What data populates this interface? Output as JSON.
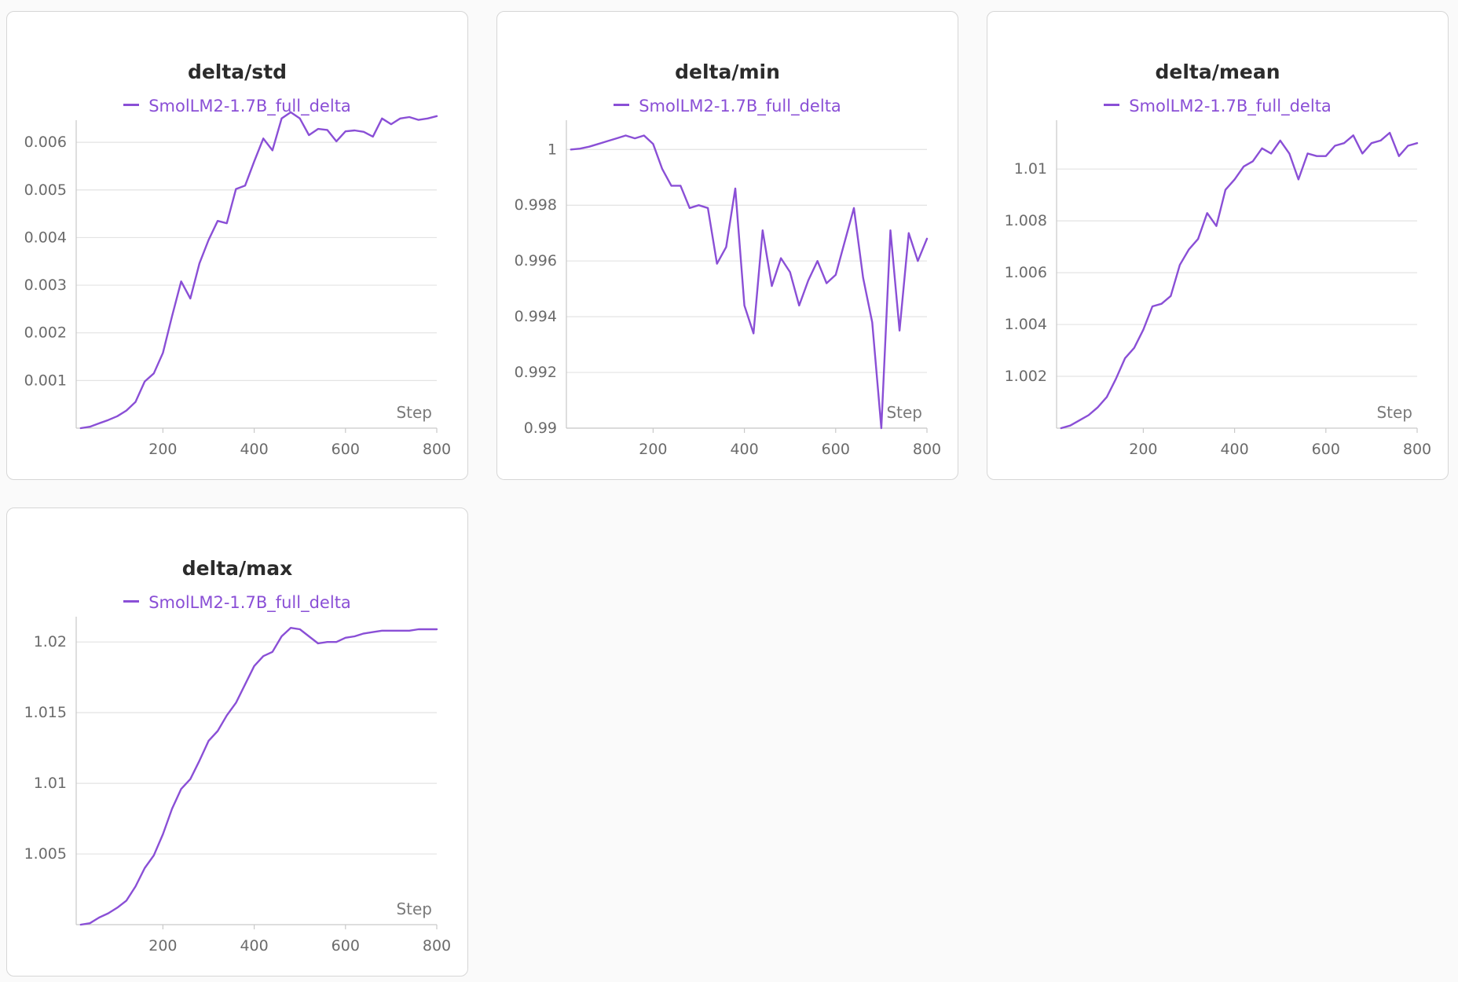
{
  "chart_data": [
    {
      "type": "line",
      "title": "delta/std",
      "xlabel": "Step",
      "ylabel": "",
      "legend": "top-center",
      "grid": true,
      "xlim": [
        10,
        800
      ],
      "ylim": [
        0.0,
        0.0062
      ],
      "xticks": [
        200,
        400,
        600,
        800
      ],
      "xtick_labels": [
        "200",
        "400",
        "600",
        "800"
      ],
      "yticks": [
        0.001,
        0.002,
        0.003,
        0.004,
        0.005,
        0.006
      ],
      "ytick_labels": [
        "0.001",
        "0.002",
        "0.003",
        "0.004",
        "0.005",
        "0.006"
      ],
      "series": [
        {
          "name": "SmolLM2-1.7B_full_delta",
          "color": "#8a4fd6",
          "x": [
            20,
            40,
            60,
            80,
            100,
            120,
            140,
            160,
            180,
            200,
            220,
            240,
            260,
            280,
            300,
            320,
            340,
            360,
            380,
            400,
            420,
            440,
            460,
            480,
            500,
            520,
            540,
            560,
            580,
            600,
            620,
            640,
            660,
            680,
            700,
            720,
            740,
            760,
            780,
            800
          ],
          "y": [
            0.0,
            3e-05,
            0.0001,
            0.00017,
            0.00025,
            0.00037,
            0.00055,
            0.00098,
            0.00115,
            0.00158,
            0.00235,
            0.00308,
            0.00272,
            0.00346,
            0.00395,
            0.00435,
            0.0043,
            0.00502,
            0.00509,
            0.0056,
            0.00608,
            0.00583,
            0.0065,
            0.00663,
            0.0065,
            0.00615,
            0.00628,
            0.00626,
            0.00602,
            0.00623,
            0.00625,
            0.00622,
            0.00612,
            0.0065,
            0.00638,
            0.0065,
            0.00653,
            0.00647,
            0.0065,
            0.00655
          ]
        }
      ]
    },
    {
      "type": "line",
      "title": "delta/min",
      "xlabel": "Step",
      "ylabel": "",
      "legend": "top-center",
      "grid": true,
      "xlim": [
        10,
        800
      ],
      "ylim": [
        0.99,
        1.0006
      ],
      "xticks": [
        200,
        400,
        600,
        800
      ],
      "xtick_labels": [
        "200",
        "400",
        "600",
        "800"
      ],
      "yticks": [
        0.99,
        0.992,
        0.994,
        0.996,
        0.998,
        1.0
      ],
      "ytick_labels": [
        "0.99",
        "0.992",
        "0.994",
        "0.996",
        "0.998",
        "1"
      ],
      "series": [
        {
          "name": "SmolLM2-1.7B_full_delta",
          "color": "#8a4fd6",
          "x": [
            20,
            40,
            60,
            80,
            100,
            120,
            140,
            160,
            180,
            200,
            220,
            240,
            260,
            280,
            300,
            320,
            340,
            360,
            380,
            400,
            420,
            440,
            460,
            480,
            500,
            520,
            540,
            560,
            580,
            600,
            620,
            640,
            660,
            680,
            700,
            720,
            740,
            760,
            780,
            800
          ],
          "y": [
            1.0,
            1.00003,
            1.0001,
            1.0002,
            1.0003,
            1.0004,
            1.0005,
            1.0004,
            1.0005,
            1.0002,
            0.9993,
            0.9987,
            0.9987,
            0.9979,
            0.998,
            0.9979,
            0.9959,
            0.9965,
            0.9986,
            0.9944,
            0.9934,
            0.9971,
            0.9951,
            0.9961,
            0.9956,
            0.9944,
            0.9953,
            0.996,
            0.9952,
            0.9955,
            0.9967,
            0.9979,
            0.9954,
            0.9938,
            0.99,
            0.9971,
            0.9935,
            0.997,
            0.996,
            0.9968
          ]
        }
      ]
    },
    {
      "type": "line",
      "title": "delta/mean",
      "xlabel": "Step",
      "ylabel": "",
      "legend": "top-center",
      "grid": true,
      "xlim": [
        10,
        800
      ],
      "ylim": [
        1.0,
        1.0114
      ],
      "xticks": [
        200,
        400,
        600,
        800
      ],
      "xtick_labels": [
        "200",
        "400",
        "600",
        "800"
      ],
      "yticks": [
        1.002,
        1.004,
        1.006,
        1.008,
        1.01
      ],
      "ytick_labels": [
        "1.002",
        "1.004",
        "1.006",
        "1.008",
        "1.01"
      ],
      "series": [
        {
          "name": "SmolLM2-1.7B_full_delta",
          "color": "#8a4fd6",
          "x": [
            20,
            40,
            60,
            80,
            100,
            120,
            140,
            160,
            180,
            200,
            220,
            240,
            260,
            280,
            300,
            320,
            340,
            360,
            380,
            400,
            420,
            440,
            460,
            480,
            500,
            520,
            540,
            560,
            580,
            600,
            620,
            640,
            660,
            680,
            700,
            720,
            740,
            760,
            780,
            800
          ],
          "y": [
            1.0,
            1.0001,
            1.0003,
            1.0005,
            1.0008,
            1.0012,
            1.0019,
            1.0027,
            1.0031,
            1.0038,
            1.0047,
            1.0048,
            1.0051,
            1.0063,
            1.0069,
            1.0073,
            1.0083,
            1.0078,
            1.0092,
            1.0096,
            1.0101,
            1.0103,
            1.0108,
            1.0106,
            1.0111,
            1.0106,
            1.0096,
            1.0106,
            1.0105,
            1.0105,
            1.0109,
            1.011,
            1.0113,
            1.0106,
            1.011,
            1.0111,
            1.0114,
            1.0105,
            1.0109,
            1.011
          ]
        }
      ]
    },
    {
      "type": "line",
      "title": "delta/max",
      "xlabel": "Step",
      "ylabel": "",
      "legend": "top-center",
      "grid": true,
      "xlim": [
        10,
        800
      ],
      "ylim": [
        1.0,
        1.0209
      ],
      "xticks": [
        200,
        400,
        600,
        800
      ],
      "xtick_labels": [
        "200",
        "400",
        "600",
        "800"
      ],
      "yticks": [
        1.005,
        1.01,
        1.015,
        1.02
      ],
      "ytick_labels": [
        "1.005",
        "1.01",
        "1.015",
        "1.02"
      ],
      "series": [
        {
          "name": "SmolLM2-1.7B_full_delta",
          "color": "#8a4fd6",
          "x": [
            20,
            40,
            60,
            80,
            100,
            120,
            140,
            160,
            180,
            200,
            220,
            240,
            260,
            280,
            300,
            320,
            340,
            360,
            380,
            400,
            420,
            440,
            460,
            480,
            500,
            520,
            540,
            560,
            580,
            600,
            620,
            640,
            660,
            680,
            700,
            720,
            740,
            760,
            780,
            800
          ],
          "y": [
            1.0,
            1.0001,
            1.0005,
            1.0008,
            1.0012,
            1.0017,
            1.0027,
            1.004,
            1.0049,
            1.0064,
            1.0082,
            1.0096,
            1.0103,
            1.0116,
            1.013,
            1.0137,
            1.0148,
            1.0157,
            1.017,
            1.0183,
            1.019,
            1.0193,
            1.0204,
            1.021,
            1.0209,
            1.0204,
            1.0199,
            1.02,
            1.02,
            1.0203,
            1.0204,
            1.0206,
            1.0207,
            1.0208,
            1.0208,
            1.0208,
            1.0208,
            1.0209,
            1.0209,
            1.0209
          ]
        }
      ]
    }
  ]
}
